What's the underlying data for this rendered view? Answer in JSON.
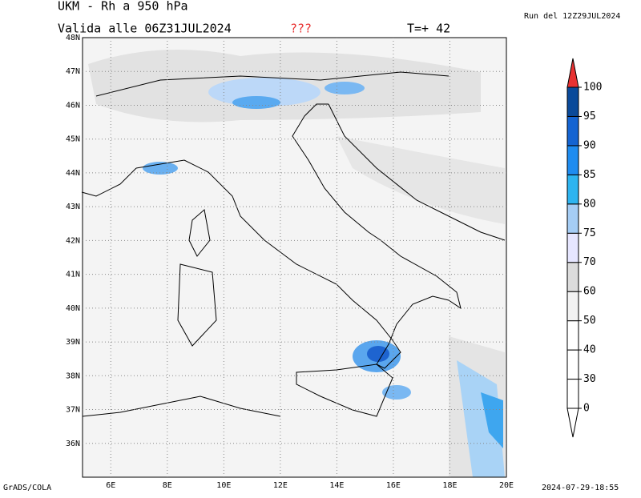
{
  "header": {
    "title": "UKM - Rh a 950 hPa",
    "valid": "Valida alle 06Z31JUL2024",
    "flag": "???",
    "step": "T=+ 42",
    "run": "Run del 12Z29JUL2024"
  },
  "map": {
    "xlim": [
      5,
      20
    ],
    "ylim": [
      35,
      48
    ],
    "lon_ticks": [
      {
        "value": 6,
        "label": "6E"
      },
      {
        "value": 8,
        "label": "8E"
      },
      {
        "value": 10,
        "label": "10E"
      },
      {
        "value": 12,
        "label": "12E"
      },
      {
        "value": 14,
        "label": "14E"
      },
      {
        "value": 16,
        "label": "16E"
      },
      {
        "value": 18,
        "label": "18E"
      },
      {
        "value": 20,
        "label": "20E"
      }
    ],
    "lat_ticks": [
      {
        "value": 36,
        "label": "36N"
      },
      {
        "value": 37,
        "label": "37N"
      },
      {
        "value": 38,
        "label": "38N"
      },
      {
        "value": 39,
        "label": "39N"
      },
      {
        "value": 40,
        "label": "40N"
      },
      {
        "value": 41,
        "label": "41N"
      },
      {
        "value": 42,
        "label": "42N"
      },
      {
        "value": 43,
        "label": "43N"
      },
      {
        "value": 44,
        "label": "44N"
      },
      {
        "value": 45,
        "label": "45N"
      },
      {
        "value": 46,
        "label": "46N"
      },
      {
        "value": 47,
        "label": "47N"
      },
      {
        "value": 48,
        "label": "48N"
      }
    ]
  },
  "colorbar": {
    "levels": [
      0,
      30,
      40,
      50,
      60,
      70,
      75,
      80,
      85,
      90,
      95,
      100
    ],
    "colors": [
      "#ffffff",
      "#ffffff",
      "#ffffff",
      "#f2f2f2",
      "#dcdcdc",
      "#e6e6ff",
      "#a5cdf5",
      "#2db4f0",
      "#1e8cf0",
      "#1464d2",
      "#0a4a9a"
    ],
    "top_color": "#e83232",
    "bottom_color": "#ffffff"
  },
  "footer": {
    "left": "GrADS/COLA",
    "right": "2024-07-29-18:55"
  }
}
